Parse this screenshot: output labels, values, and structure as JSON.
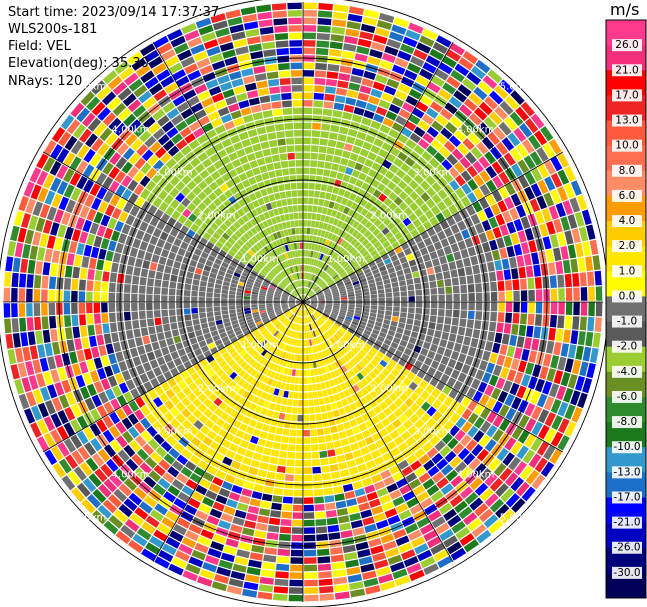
{
  "header": {
    "start_time": "Start time: 2023/09/14 17:37:37",
    "instrument": "WLS200s-181",
    "field": "Field: VEL",
    "elevation": "Elevation(deg): 35.30",
    "nrays": "NRays: 120"
  },
  "colorbar": {
    "unit": "m/s",
    "ticks": [
      "26.0",
      "21.0",
      "17.0",
      "13.0",
      "10.0",
      "8.0",
      "6.0",
      "4.0",
      "2.0",
      "1.0",
      "0.0",
      "-1.0",
      "-2.0",
      "-4.0",
      "-6.0",
      "-8.0",
      "-10.0",
      "-13.0",
      "-17.0",
      "-21.0",
      "-26.0",
      "-30.0"
    ],
    "colors": [
      "#ff3a8c",
      "#f22f7a",
      "#ff0000",
      "#ee2424",
      "#ff5a3c",
      "#ff6e50",
      "#ff8c64",
      "#ff9c00",
      "#ffcc00",
      "#ffe600",
      "#fffd00",
      "#707070",
      "#5a5a5a",
      "#9acd32",
      "#6b8e23",
      "#2e8b2e",
      "#1c7a1c",
      "#3399cc",
      "#1e6fc8",
      "#0000ff",
      "#0000c0",
      "#00007a",
      "#000058"
    ]
  },
  "chart_data": {
    "type": "polar_ppi",
    "field": "VEL",
    "units": "m/s",
    "range_ring_labels": [
      "1.00km",
      "2.00km",
      "3.00km",
      "4.00km",
      "5.00km"
    ],
    "range_rings_km": [
      1,
      2,
      3,
      4,
      5
    ],
    "nrays": 120,
    "velocity_scale": [
      -30,
      26
    ],
    "pattern": {
      "near_north": "-2.0 to -4.0 (olive green)",
      "near_south": "2.0 to 1.0 (yellow)",
      "near_east_west": "0.0 to -1.0 (gray)",
      "beyond_km": 3.2,
      "beyond_description": "noisy, all colors"
    }
  }
}
